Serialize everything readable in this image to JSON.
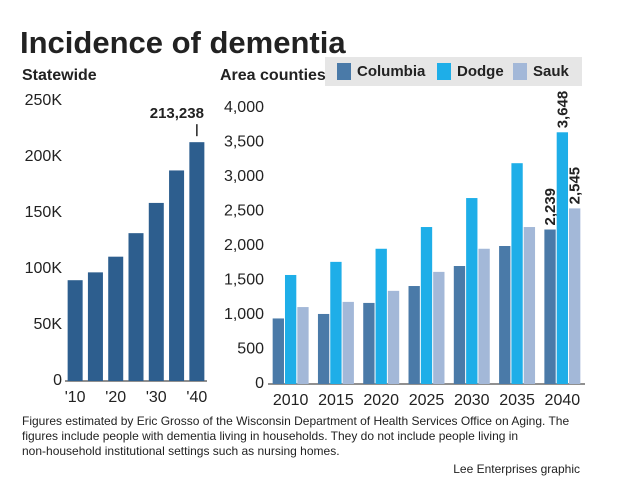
{
  "title": "Incidence of dementia",
  "note": [
    "Figures estimated by Eric Grosso of the Wisconsin Department of Health Services Office on Aging. The",
    "figures include people with dementia living in households. They do not include people living in",
    "non-household institutional settings such as nursing homes."
  ],
  "credit": "Lee Enterprises graphic",
  "chart_data": [
    {
      "type": "bar",
      "title": "Statewide",
      "categories": [
        "'10",
        null,
        "'20",
        null,
        "'30",
        null,
        "'40"
      ],
      "values": [
        90000,
        97000,
        111000,
        132000,
        159000,
        188000,
        213238
      ],
      "value_labels": [
        null,
        null,
        null,
        null,
        null,
        null,
        "213,238"
      ],
      "color": "#2d5e8e",
      "ylim": [
        0,
        250000
      ],
      "yticks": [
        0,
        {
          "value": 50000,
          "label": "50K"
        },
        {
          "value": 100000,
          "label": "100K"
        },
        {
          "value": 150000,
          "label": "150K"
        },
        {
          "value": 200000,
          "label": "200K"
        },
        {
          "value": 250000,
          "label": "250K"
        }
      ]
    },
    {
      "type": "grouped-bar",
      "title": "Area counties",
      "categories": [
        "2010",
        "2015",
        "2020",
        "2025",
        "2030",
        "2035",
        "2040"
      ],
      "series": [
        {
          "name": "Columbia",
          "color": "#4a7aa8",
          "values": [
            950,
            1015,
            1175,
            1420,
            1710,
            2000,
            2239
          ],
          "value_labels": [
            null,
            null,
            null,
            null,
            null,
            null,
            "2,239"
          ]
        },
        {
          "name": "Dodge",
          "color": "#1eaee8",
          "values": [
            1580,
            1770,
            1960,
            2275,
            2695,
            3200,
            3648
          ],
          "value_labels": [
            null,
            null,
            null,
            null,
            null,
            null,
            "3,648"
          ]
        },
        {
          "name": "Sauk",
          "color": "#a3b8d8",
          "values": [
            1115,
            1190,
            1350,
            1625,
            1960,
            2275,
            2545
          ],
          "value_labels": [
            null,
            null,
            null,
            null,
            null,
            null,
            "2,545"
          ]
        }
      ],
      "ylim": [
        0,
        4000
      ],
      "yticks": [
        0,
        500,
        {
          "value": 1000,
          "label": "1,000"
        },
        {
          "value": 1500,
          "label": "1,500"
        },
        {
          "value": 2000,
          "label": "2,000"
        },
        {
          "value": 2500,
          "label": "2,500"
        },
        {
          "value": 3000,
          "label": "3,000"
        },
        {
          "value": 3500,
          "label": "3,500"
        },
        {
          "value": 4000,
          "label": "4,000"
        }
      ]
    }
  ]
}
